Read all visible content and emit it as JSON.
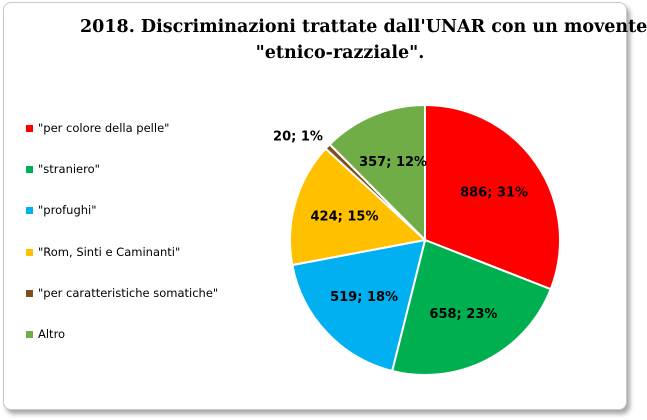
{
  "chart_data": {
    "type": "pie",
    "title": [
      "2018. Discriminazioni trattate dall'UNAR con un movente",
      "\"etnico-razziale\"."
    ],
    "legend_position": "left",
    "slices": [
      {
        "label": "\"per colore della pelle\"",
        "value": 886,
        "percent": 31,
        "data_label": "886; 31%",
        "color": "#ff0000"
      },
      {
        "label": "\"straniero\"",
        "value": 658,
        "percent": 23,
        "data_label": "658; 23%",
        "color": "#00b050"
      },
      {
        "label": "\"profughi\"",
        "value": 519,
        "percent": 18,
        "data_label": "519; 18%",
        "color": "#00b0f0"
      },
      {
        "label": " \"Rom, Sinti e Caminanti\"",
        "value": 424,
        "percent": 15,
        "data_label": "424; 15%",
        "color": "#ffc000"
      },
      {
        "label": "\"per caratteristiche somatiche\"",
        "value": 20,
        "percent": 1,
        "data_label": "20; 1%",
        "color": "#7f4f21"
      },
      {
        "label": "Altro",
        "value": 357,
        "percent": 12,
        "data_label": "357; 12%",
        "color": "#70ad47"
      }
    ]
  }
}
